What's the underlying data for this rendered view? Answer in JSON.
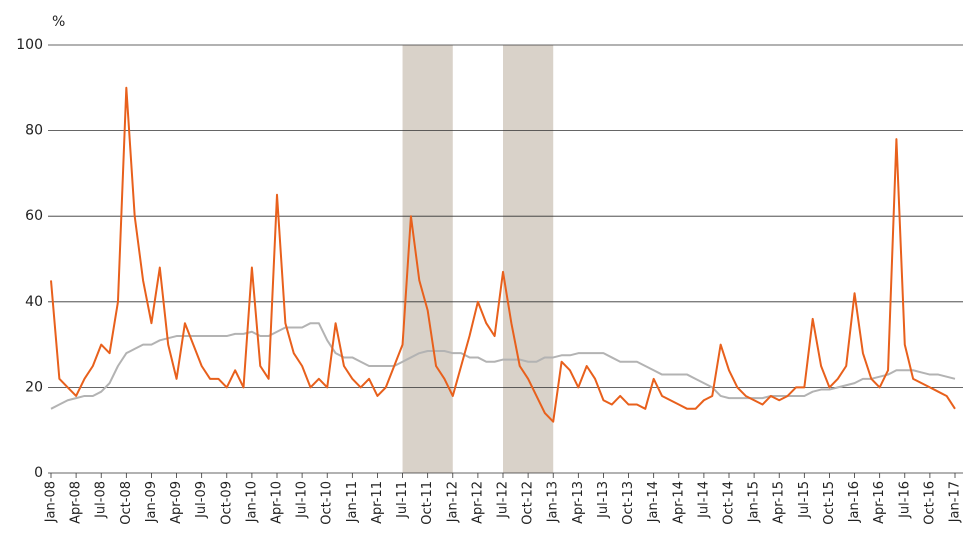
{
  "chart_data": {
    "type": "line",
    "y_unit_label": "%",
    "categories": [
      "Jan-08",
      null,
      null,
      "Apr-08",
      null,
      null,
      "Jul-08",
      null,
      null,
      "Oct-08",
      null,
      null,
      "Jan-09",
      null,
      null,
      "Apr-09",
      null,
      null,
      "Jul-09",
      null,
      null,
      "Oct-09",
      null,
      null,
      "Jan-10",
      null,
      null,
      "Apr-10",
      null,
      null,
      "Jul-10",
      null,
      null,
      "Oct-10",
      null,
      null,
      "Jan-11",
      null,
      null,
      "Apr-11",
      null,
      null,
      "Jul-11",
      null,
      null,
      "Oct-11",
      null,
      null,
      "Jan-12",
      null,
      null,
      "Apr-12",
      null,
      null,
      "Jul-12",
      null,
      null,
      "Oct-12",
      null,
      null,
      "Jan-13",
      null,
      null,
      "Apr-13",
      null,
      null,
      "Jul-13",
      null,
      null,
      "Oct-13",
      null,
      null,
      "Jan-14",
      null,
      null,
      "Apr-14",
      null,
      null,
      "Jul-14",
      null,
      null,
      "Oct-14",
      null,
      null,
      "Jan-15",
      null,
      null,
      "Apr-15",
      null,
      null,
      "Jul-15",
      null,
      null,
      "Oct-15",
      null,
      null,
      "Jan-16",
      null,
      null,
      "Apr-16",
      null,
      null,
      "Jul-16",
      null,
      null,
      "Oct-16",
      null,
      null,
      "Jan-17"
    ],
    "series": [
      {
        "color": "#e8601c",
        "values": [
          45,
          22,
          20,
          18,
          22,
          25,
          30,
          28,
          40,
          90,
          60,
          45,
          35,
          48,
          30,
          22,
          35,
          30,
          25,
          22,
          22,
          20,
          24,
          20,
          48,
          25,
          22,
          65,
          35,
          28,
          25,
          20,
          22,
          20,
          35,
          25,
          22,
          20,
          22,
          18,
          20,
          25,
          30,
          60,
          45,
          38,
          25,
          22,
          18,
          25,
          32,
          40,
          35,
          32,
          47,
          35,
          25,
          22,
          18,
          14,
          12,
          26,
          24,
          20,
          25,
          22,
          17,
          16,
          18,
          16,
          16,
          15,
          22,
          18,
          17,
          16,
          15,
          15,
          17,
          18,
          30,
          24,
          20,
          18,
          17,
          16,
          18,
          17,
          18,
          20,
          20,
          36,
          25,
          20,
          22,
          25,
          42,
          28,
          22,
          20,
          24,
          78,
          30,
          22,
          21,
          20,
          19,
          18,
          15
        ]
      },
      {
        "color": "#b3b3b3",
        "values": [
          15,
          16,
          17,
          17.5,
          18,
          18,
          19,
          21,
          25,
          28,
          29,
          30,
          30,
          31,
          31.5,
          32,
          32,
          32,
          32,
          32,
          32,
          32,
          32.5,
          32.5,
          33,
          32,
          32,
          33,
          34,
          34,
          34,
          35,
          35,
          31,
          28,
          27,
          27,
          26,
          25,
          25,
          25,
          25,
          26,
          27,
          28,
          28.5,
          28.5,
          28.5,
          28,
          28,
          27,
          27,
          26,
          26,
          26.5,
          26.5,
          26.5,
          26,
          26,
          27,
          27,
          27.5,
          27.5,
          28,
          28,
          28,
          28,
          27,
          26,
          26,
          26,
          25,
          24,
          23,
          23,
          23,
          23,
          22,
          21,
          20,
          18,
          17.5,
          17.5,
          17.5,
          17.5,
          17.5,
          18,
          18,
          18,
          18,
          18,
          19,
          19.5,
          19.5,
          20,
          20.5,
          21,
          22,
          22,
          22.5,
          23,
          24,
          24,
          24,
          23.5,
          23,
          23,
          22.5,
          22
        ]
      }
    ],
    "shaded_periods": [
      {
        "start": "Jul-11",
        "end": "Jan-12",
        "color": "#d9d2c9"
      },
      {
        "start": "Jul-12",
        "end": "Jan-13",
        "color": "#d9d2c9"
      }
    ],
    "ylim": [
      0,
      100
    ],
    "yticks": [
      0,
      20,
      40,
      60,
      80,
      100
    ],
    "grid": true
  }
}
